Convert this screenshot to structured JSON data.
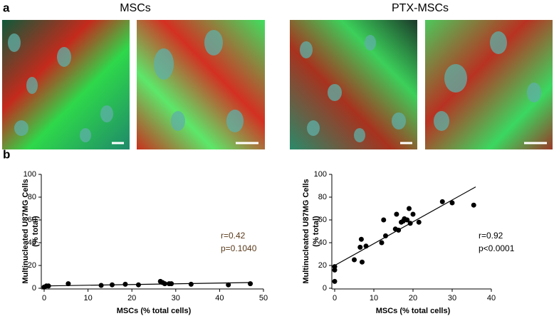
{
  "panels": {
    "a": {
      "label": "a",
      "titles": [
        "MSCs",
        "PTX-MSCs"
      ]
    },
    "b": {
      "label": "b"
    }
  },
  "chart_data": [
    {
      "type": "scatter",
      "x_label": "MSCs (% total cells)",
      "y_label": [
        "Multinucleated U87MG Cells",
        "(% total)"
      ],
      "x": [
        0,
        0.5,
        1,
        5.5,
        13,
        15.5,
        18.5,
        21.5,
        26.5,
        27,
        27.5,
        28.5,
        29,
        33.5,
        42,
        47
      ],
      "values": [
        1,
        2,
        2,
        4,
        2.5,
        3,
        3.5,
        3,
        6,
        5,
        4,
        4,
        4,
        3.5,
        3,
        4
      ],
      "color": "#000000",
      "fit": {
        "x": [
          0,
          47
        ],
        "y": [
          2,
          5
        ],
        "color": "#000000"
      },
      "annotations": [
        "r=0.42",
        "p=0.1040"
      ],
      "annotation_color": "#5a3a1a",
      "xlim": [
        0,
        50
      ],
      "xticks": [
        0,
        10,
        20,
        30,
        40,
        50
      ],
      "ylim": [
        0,
        100
      ],
      "yticks": [
        0,
        20,
        40,
        60,
        80,
        100
      ]
    },
    {
      "type": "scatter",
      "x_label": "MSCs (% total cells)",
      "y_label": [
        "Multinucleated U87MG Cells",
        "(% total)"
      ],
      "x": [
        0,
        0,
        0,
        5,
        6.5,
        6.8,
        7,
        8,
        12,
        12.5,
        13,
        15.5,
        15.8,
        16.3,
        17,
        17.5,
        17.8,
        18.5,
        19,
        19.3,
        20,
        21.5,
        27.5,
        30,
        35.5
      ],
      "values": [
        6,
        16,
        19,
        25,
        36,
        43,
        23,
        37,
        40,
        60,
        46,
        52,
        65,
        51,
        58,
        59,
        61,
        60,
        70,
        57,
        65,
        58,
        76,
        75,
        73
      ],
      "color": "#000000",
      "fit": {
        "x": [
          0,
          36
        ],
        "y": [
          20,
          89
        ],
        "color": "#000000"
      },
      "annotations": [
        "r=0.92",
        "p<0.0001"
      ],
      "annotation_color": "#000000",
      "xlim": [
        0,
        40
      ],
      "xticks": [
        0,
        10,
        20,
        30,
        40
      ],
      "ylim": [
        0,
        100
      ],
      "yticks": [
        0,
        20,
        40,
        60,
        80,
        100
      ]
    }
  ]
}
